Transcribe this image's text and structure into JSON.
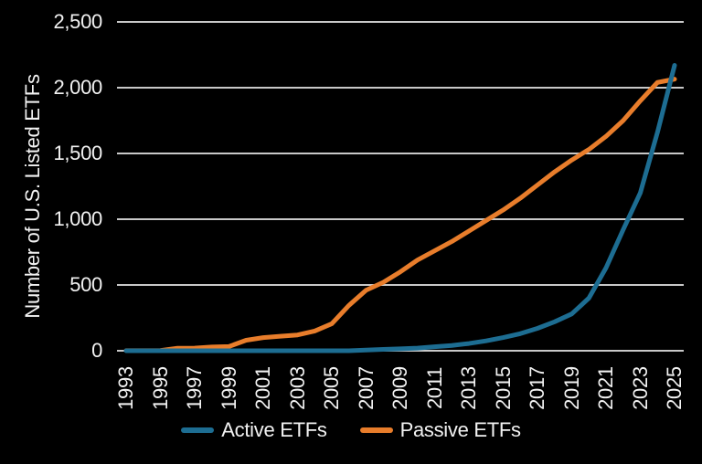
{
  "chart_data": {
    "type": "line",
    "ylabel": "Number of U.S. Listed ETFs",
    "xlabel": "",
    "ylim": [
      0,
      2500
    ],
    "yticks": [
      0,
      500,
      1000,
      1500,
      2000,
      2500
    ],
    "ytick_labels": [
      "0",
      "500",
      "1,000",
      "1,500",
      "2,000",
      "2,500"
    ],
    "x": [
      1993,
      1994,
      1995,
      1996,
      1997,
      1998,
      1999,
      2000,
      2001,
      2002,
      2003,
      2004,
      2005,
      2006,
      2007,
      2008,
      2009,
      2010,
      2011,
      2012,
      2013,
      2014,
      2015,
      2016,
      2017,
      2018,
      2019,
      2020,
      2021,
      2022,
      2023,
      2024,
      2025
    ],
    "xticks": [
      1993,
      1995,
      1997,
      1999,
      2001,
      2003,
      2005,
      2007,
      2009,
      2011,
      2013,
      2015,
      2017,
      2019,
      2021,
      2023,
      2025
    ],
    "xtick_labels": [
      "1993",
      "1995",
      "1997",
      "1999",
      "2001",
      "2003",
      "2005",
      "2007",
      "2009",
      "2011",
      "2013",
      "2015",
      "2017",
      "2019",
      "2021",
      "2023",
      "2025"
    ],
    "grid": true,
    "legend_position": "bottom",
    "colors": {
      "background": "#000000",
      "grid": "#c8c8c8",
      "text": "#f2f2f2",
      "active": "#1d6d92",
      "passive": "#e87d2b"
    },
    "series": [
      {
        "name": "Active ETFs",
        "color": "#1d6d92",
        "values": [
          0,
          0,
          0,
          0,
          0,
          0,
          0,
          0,
          0,
          0,
          0,
          0,
          0,
          0,
          5,
          10,
          15,
          20,
          30,
          40,
          55,
          75,
          100,
          130,
          170,
          220,
          280,
          400,
          630,
          920,
          1200,
          1660,
          2170
        ]
      },
      {
        "name": "Passive ETFs",
        "color": "#e87d2b",
        "values": [
          1,
          1,
          2,
          19,
          20,
          29,
          32,
          80,
          100,
          110,
          120,
          150,
          205,
          345,
          460,
          520,
          600,
          690,
          760,
          830,
          910,
          990,
          1070,
          1160,
          1260,
          1360,
          1450,
          1530,
          1630,
          1750,
          1900,
          2040,
          2065
        ]
      }
    ]
  }
}
